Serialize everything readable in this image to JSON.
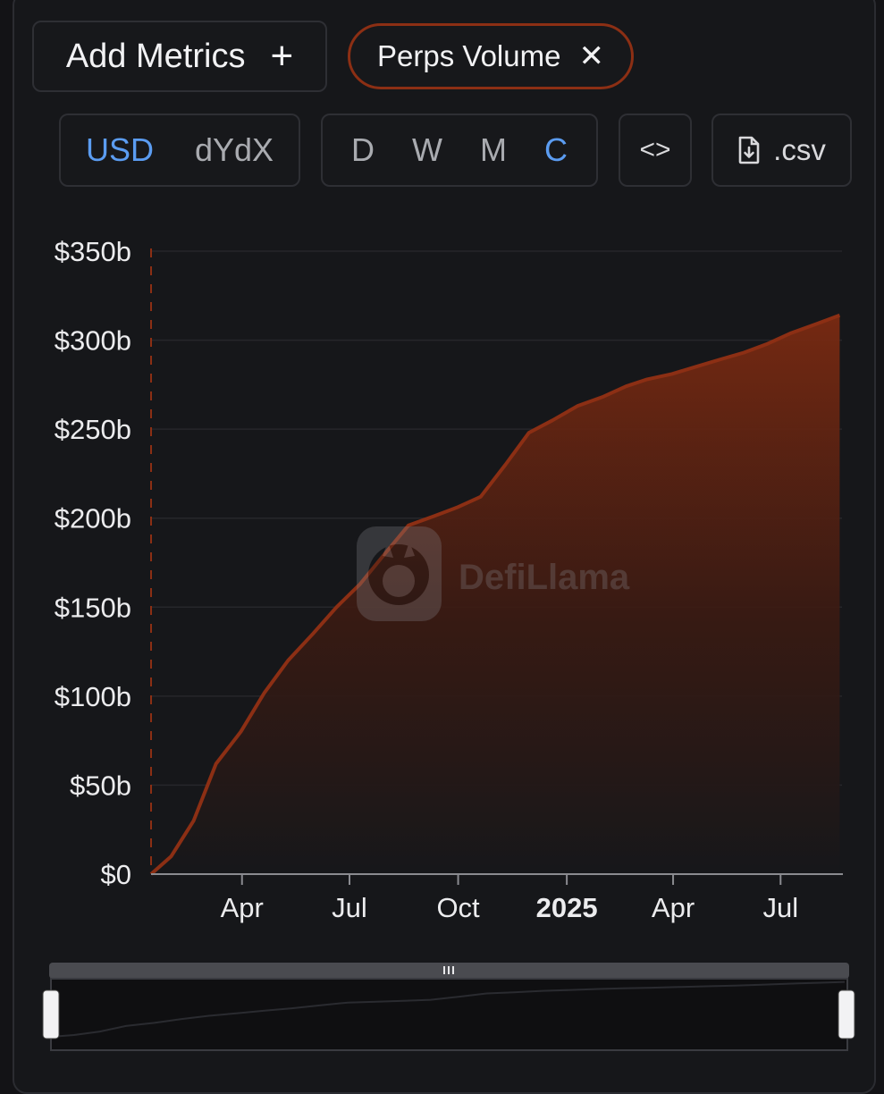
{
  "toolbar": {
    "add_metrics_label": "Add Metrics",
    "metric_chip_label": "Perps Volume",
    "unit_options": [
      "USD",
      "dYdX"
    ],
    "unit_selected": "USD",
    "period_options": [
      "D",
      "W",
      "M",
      "C"
    ],
    "period_selected": "C",
    "embed_label": "<>",
    "csv_label": ".csv"
  },
  "watermark": {
    "brand": "DefiLlama"
  },
  "colors": {
    "series": "#8c2f14",
    "active": "#5b9cf1",
    "background": "#16171a"
  },
  "chart_data": {
    "type": "area",
    "series": [
      {
        "values": [
          {
            "x": "2024-01-15",
            "y": 0
          },
          {
            "x": "2024-02-01",
            "y": 10
          },
          {
            "x": "2024-02-20",
            "y": 30
          },
          {
            "x": "2024-03-10",
            "y": 62
          },
          {
            "x": "2024-03-31",
            "y": 80
          },
          {
            "x": "2024-04-20",
            "y": 102
          },
          {
            "x": "2024-05-10",
            "y": 120
          },
          {
            "x": "2024-05-31",
            "y": 135
          },
          {
            "x": "2024-06-20",
            "y": 150
          },
          {
            "x": "2024-07-10",
            "y": 163
          },
          {
            "x": "2024-07-31",
            "y": 180
          },
          {
            "x": "2024-08-20",
            "y": 196
          },
          {
            "x": "2024-09-10",
            "y": 201
          },
          {
            "x": "2024-09-30",
            "y": 206
          },
          {
            "x": "2024-10-20",
            "y": 212
          },
          {
            "x": "2024-11-10",
            "y": 230
          },
          {
            "x": "2024-11-30",
            "y": 248
          },
          {
            "x": "2024-12-20",
            "y": 255
          },
          {
            "x": "2025-01-10",
            "y": 263
          },
          {
            "x": "2025-01-31",
            "y": 268
          },
          {
            "x": "2025-02-20",
            "y": 274
          },
          {
            "x": "2025-03-10",
            "y": 278
          },
          {
            "x": "2025-03-31",
            "y": 281
          },
          {
            "x": "2025-04-20",
            "y": 285
          },
          {
            "x": "2025-05-10",
            "y": 289
          },
          {
            "x": "2025-05-31",
            "y": 293
          },
          {
            "x": "2025-06-20",
            "y": 298
          },
          {
            "x": "2025-07-10",
            "y": 304
          },
          {
            "x": "2025-07-31",
            "y": 309
          },
          {
            "x": "2025-08-20",
            "y": 314
          }
        ]
      }
    ],
    "y_ticks": [
      "$0",
      "$50b",
      "$100b",
      "$150b",
      "$200b",
      "$250b",
      "$300b",
      "$350b"
    ],
    "y_tick_values": [
      0,
      50,
      100,
      150,
      200,
      250,
      300,
      350
    ],
    "ylim": [
      0,
      350
    ],
    "x_ticks": [
      {
        "label": "Apr",
        "x": "2024-04-01",
        "bold": false
      },
      {
        "label": "Jul",
        "x": "2024-07-01",
        "bold": false
      },
      {
        "label": "Oct",
        "x": "2024-10-01",
        "bold": false
      },
      {
        "label": "2025",
        "x": "2025-01-01",
        "bold": true
      },
      {
        "label": "Apr",
        "x": "2025-04-01",
        "bold": false
      },
      {
        "label": "Jul",
        "x": "2025-07-01",
        "bold": false
      }
    ],
    "xlim": [
      "2024-01-15",
      "2025-08-22"
    ],
    "grid": true,
    "legend": "none"
  }
}
